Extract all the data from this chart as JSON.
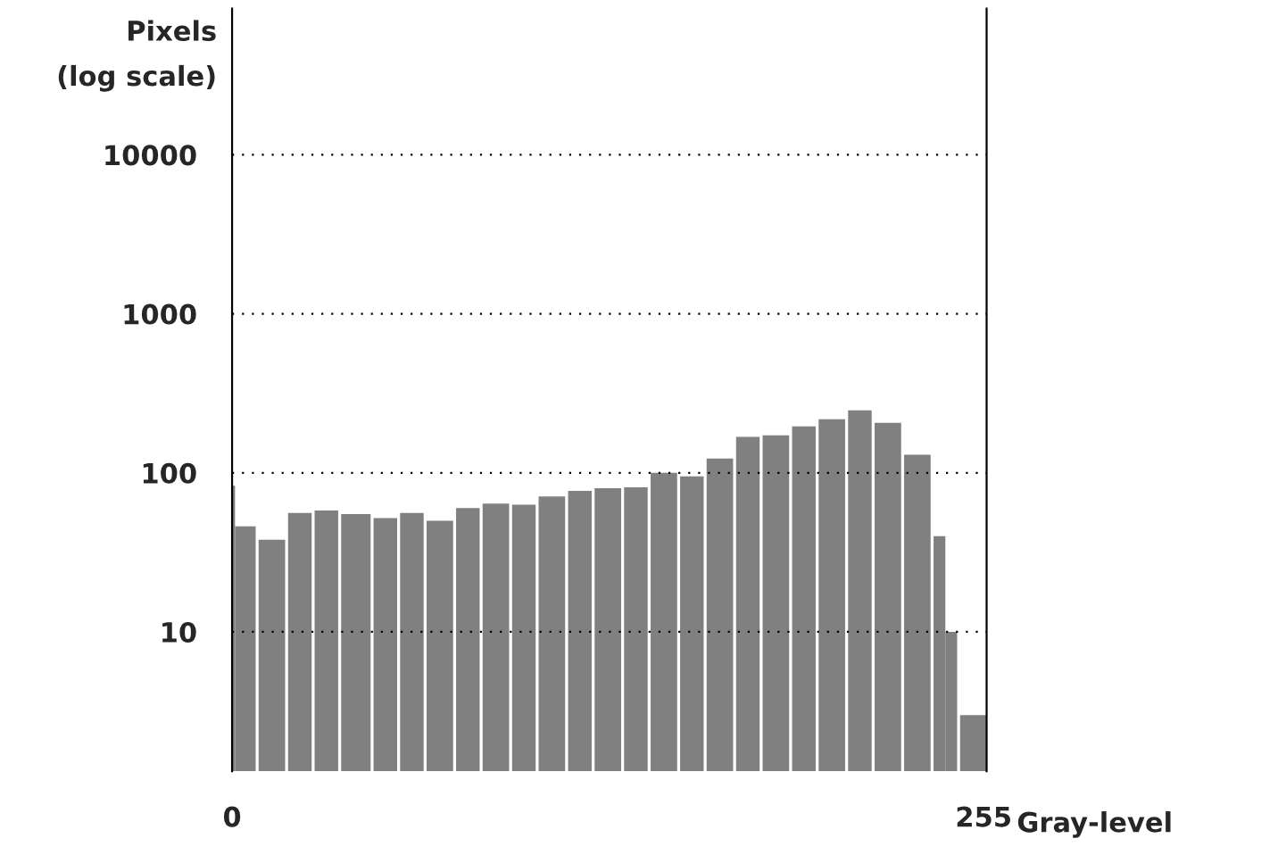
{
  "chart_data": {
    "type": "histogram",
    "xlabel": "Gray-level",
    "ylabel": "Pixels\n(log scale)",
    "bins": [
      0,
      1,
      8,
      9,
      18,
      19,
      27,
      28,
      36,
      37,
      47,
      48,
      56,
      57,
      65,
      66,
      75,
      76,
      84,
      85,
      94,
      95,
      103,
      104,
      113,
      114,
      122,
      123,
      132,
      133,
      141,
      142,
      151,
      152,
      160,
      161,
      170,
      171,
      179,
      180,
      189,
      190,
      198,
      199,
      208,
      209,
      217,
      218,
      227,
      228,
      237,
      238,
      242,
      246,
      247,
      256
    ],
    "values": [
      83,
      46,
      null,
      38,
      null,
      56,
      null,
      58,
      null,
      55,
      null,
      52,
      null,
      56,
      null,
      50,
      null,
      60,
      null,
      64,
      null,
      63,
      null,
      71,
      null,
      77,
      null,
      80,
      null,
      81,
      null,
      100,
      null,
      95,
      null,
      123,
      null,
      168,
      null,
      172,
      null,
      196,
      null,
      217,
      null,
      247,
      null,
      206,
      null,
      130,
      null,
      40,
      10,
      null,
      3
    ],
    "color": "#808080",
    "log": "y",
    "xlim": [
      0,
      256
    ],
    "xticks": [
      0,
      255
    ],
    "ylim": [
      1.33,
      83000
    ],
    "yticks": [
      10,
      100,
      1000,
      10000
    ],
    "grid": "y"
  }
}
